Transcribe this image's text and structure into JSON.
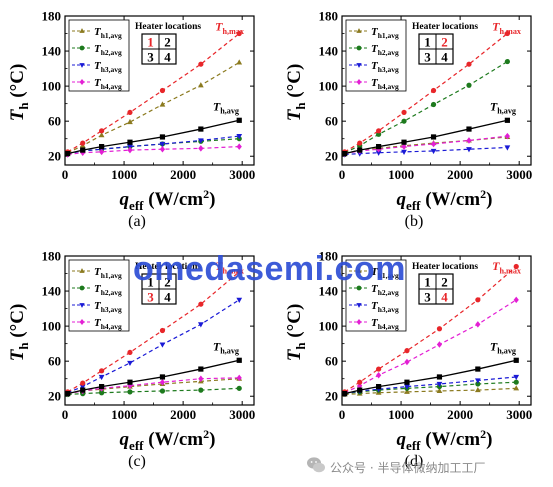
{
  "watermark": "omedasemi.com",
  "credit": "公众号 · 半导体微纳加工工厂",
  "colors": {
    "Th1": "#8b7a1f",
    "Th2": "#1d7a1d",
    "Th3": "#1a1ad6",
    "Th4": "#e31fd4",
    "Thmax": "#e8262a",
    "Thavg": "#000000",
    "highlight": "#e8262a"
  },
  "chart_data": [
    {
      "type": "line",
      "panel": "(a)",
      "xlabel_base": "q",
      "xlabel_sub": "eff",
      "xlabel_unit": "(W/cm",
      "xlabel_sup": "2",
      "xlabel_close": ")",
      "ylabel_base": "T",
      "ylabel_sub": "h",
      "ylabel_unit": "(°C)",
      "xlim": [
        0,
        3200
      ],
      "ylim": [
        10,
        180
      ],
      "xticks": [
        0,
        1000,
        2000,
        3000
      ],
      "yticks": [
        20,
        60,
        100,
        140,
        180
      ],
      "x": [
        45,
        300,
        620,
        1100,
        1650,
        2300,
        2950
      ],
      "series": [
        {
          "name": "T_h1,avg",
          "key": "Th1",
          "marker": "tri-up",
          "values": [
            24,
            32,
            44,
            59,
            79,
            101,
            127
          ]
        },
        {
          "name": "T_h2,avg",
          "key": "Th2",
          "marker": "circle",
          "values": [
            23,
            26,
            28,
            31,
            34,
            37,
            40
          ]
        },
        {
          "name": "T_h3,avg",
          "key": "Th3",
          "marker": "tri-down",
          "values": [
            23,
            26,
            28,
            31,
            34,
            38,
            43
          ]
        },
        {
          "name": "T_h4,avg",
          "key": "Th4",
          "marker": "diamond",
          "values": [
            22,
            24,
            25,
            27,
            28,
            29,
            31
          ]
        },
        {
          "name": "T_h,max",
          "key": "Thmax",
          "marker": "circle",
          "values": [
            25,
            35,
            49,
            70,
            95,
            125,
            160
          ]
        },
        {
          "name": "T_h,avg",
          "key": "Thavg",
          "marker": "square",
          "values": [
            23,
            27,
            31,
            36,
            42,
            51,
            61
          ]
        }
      ],
      "legend": [
        "T_h1,avg",
        "T_h2,avg",
        "T_h3,avg",
        "T_h4,avg"
      ],
      "heater_title": "Heater locations",
      "heater_grid": [
        "1",
        "2",
        "3",
        "4"
      ],
      "heater_active": 0,
      "tmax_label": "T_h,max",
      "tavg_label": "T_h,avg"
    },
    {
      "type": "line",
      "panel": "(b)",
      "xlabel_base": "q",
      "xlabel_sub": "eff",
      "xlabel_unit": "(W/cm",
      "xlabel_sup": "2",
      "xlabel_close": ")",
      "ylabel_base": "T",
      "ylabel_sub": "h",
      "ylabel_unit": "(°C)",
      "xlim": [
        0,
        3200
      ],
      "ylim": [
        10,
        180
      ],
      "xticks": [
        0,
        1000,
        2000,
        3000
      ],
      "yticks": [
        20,
        60,
        100,
        140,
        180
      ],
      "x": [
        45,
        300,
        620,
        1050,
        1550,
        2150,
        2800
      ],
      "series": [
        {
          "name": "T_h1,avg",
          "key": "Th1",
          "marker": "tri-up",
          "values": [
            23,
            27,
            29,
            32,
            35,
            38,
            42
          ]
        },
        {
          "name": "T_h2,avg",
          "key": "Th2",
          "marker": "circle",
          "values": [
            24,
            32,
            45,
            60,
            79,
            101,
            128
          ]
        },
        {
          "name": "T_h3,avg",
          "key": "Th3",
          "marker": "tri-down",
          "values": [
            22,
            23,
            24,
            25,
            26,
            28,
            30
          ]
        },
        {
          "name": "T_h4,avg",
          "key": "Th4",
          "marker": "diamond",
          "values": [
            23,
            26,
            28,
            31,
            34,
            38,
            43
          ]
        },
        {
          "name": "T_h,max",
          "key": "Thmax",
          "marker": "circle",
          "values": [
            25,
            35,
            49,
            70,
            95,
            125,
            160
          ]
        },
        {
          "name": "T_h,avg",
          "key": "Thavg",
          "marker": "square",
          "values": [
            23,
            27,
            31,
            36,
            42,
            51,
            61
          ]
        }
      ],
      "legend": [
        "T_h1,avg",
        "T_h2,avg",
        "T_h3,avg",
        "T_h4,avg"
      ],
      "heater_title": "Heater locations",
      "heater_grid": [
        "1",
        "2",
        "3",
        "4"
      ],
      "heater_active": 1,
      "tmax_label": "T_h,max",
      "tavg_label": "T_h,avg"
    },
    {
      "type": "line",
      "panel": "(c)",
      "xlabel_base": "q",
      "xlabel_sub": "eff",
      "xlabel_unit": "(W/cm",
      "xlabel_sup": "2",
      "xlabel_close": ")",
      "ylabel_base": "T",
      "ylabel_sub": "h",
      "ylabel_unit": "(°C)",
      "xlim": [
        0,
        3200
      ],
      "ylim": [
        10,
        180
      ],
      "xticks": [
        0,
        1000,
        2000,
        3000
      ],
      "yticks": [
        20,
        60,
        100,
        140,
        180
      ],
      "x": [
        45,
        300,
        620,
        1100,
        1650,
        2300,
        2950
      ],
      "series": [
        {
          "name": "T_h1,avg",
          "key": "Th1",
          "marker": "tri-up",
          "values": [
            23,
            26,
            28,
            31,
            34,
            37,
            40
          ]
        },
        {
          "name": "T_h2,avg",
          "key": "Th2",
          "marker": "circle",
          "values": [
            22,
            23,
            24,
            25,
            26,
            27,
            29
          ]
        },
        {
          "name": "T_h3,avg",
          "key": "Th3",
          "marker": "tri-down",
          "values": [
            24,
            31,
            42,
            58,
            79,
            102,
            130
          ]
        },
        {
          "name": "T_h4,avg",
          "key": "Th4",
          "marker": "diamond",
          "values": [
            23,
            26,
            29,
            32,
            36,
            40,
            41
          ]
        },
        {
          "name": "T_h,max",
          "key": "Thmax",
          "marker": "circle",
          "values": [
            25,
            35,
            49,
            70,
            95,
            125,
            162
          ]
        },
        {
          "name": "T_h,avg",
          "key": "Thavg",
          "marker": "square",
          "values": [
            23,
            27,
            31,
            36,
            42,
            51,
            61
          ]
        }
      ],
      "legend": [
        "T_h1,avg",
        "T_h2,avg",
        "T_h3,avg",
        "T_h4,avg"
      ],
      "heater_title": "Heater locations",
      "heater_grid": [
        "1",
        "2",
        "3",
        "4"
      ],
      "heater_active": 2,
      "tmax_label": "T_h,max",
      "tavg_label": "T_h,avg"
    },
    {
      "type": "line",
      "panel": "(d)",
      "xlabel_base": "q",
      "xlabel_sub": "eff",
      "xlabel_unit": "(W/cm",
      "xlabel_sup": "2",
      "xlabel_close": ")",
      "ylabel_base": "T",
      "ylabel_sub": "h",
      "ylabel_unit": "(°C)",
      "xlim": [
        0,
        3200
      ],
      "ylim": [
        10,
        180
      ],
      "xticks": [
        0,
        1000,
        2000,
        3000
      ],
      "yticks": [
        20,
        60,
        100,
        140,
        180
      ],
      "x": [
        45,
        300,
        620,
        1100,
        1650,
        2300,
        2950
      ],
      "series": [
        {
          "name": "T_h1,avg",
          "key": "Th1",
          "marker": "tri-up",
          "values": [
            22,
            23,
            24,
            25,
            26,
            27,
            29
          ]
        },
        {
          "name": "T_h2,avg",
          "key": "Th2",
          "marker": "circle",
          "values": [
            23,
            25,
            27,
            29,
            31,
            34,
            36
          ]
        },
        {
          "name": "T_h3,avg",
          "key": "Th3",
          "marker": "tri-down",
          "values": [
            23,
            26,
            28,
            31,
            34,
            38,
            42
          ]
        },
        {
          "name": "T_h4,avg",
          "key": "Th4",
          "marker": "diamond",
          "values": [
            24,
            32,
            44,
            59,
            79,
            102,
            130
          ]
        },
        {
          "name": "T_h,max",
          "key": "Thmax",
          "marker": "circle",
          "values": [
            25,
            36,
            51,
            72,
            97,
            130,
            168
          ]
        },
        {
          "name": "T_h,avg",
          "key": "Thavg",
          "marker": "square",
          "values": [
            23,
            27,
            31,
            36,
            42,
            51,
            61
          ]
        }
      ],
      "legend": [
        "T_h1,avg",
        "T_h2,avg",
        "T_h3,avg",
        "T_h4,avg"
      ],
      "heater_title": "Heater locations",
      "heater_grid": [
        "1",
        "2",
        "3",
        "4"
      ],
      "heater_active": 3,
      "tmax_label": "T_h,max",
      "tavg_label": "T_h,avg"
    }
  ]
}
